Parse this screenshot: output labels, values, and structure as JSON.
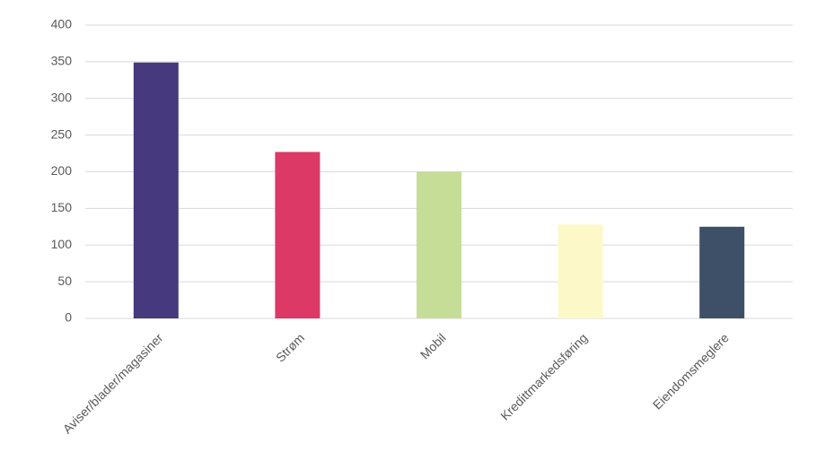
{
  "chart_data": {
    "type": "bar",
    "categories": [
      "Aviser/blader/magasiner",
      "Strøm",
      "Mobil",
      "Kredittmarkedsføring",
      "Eiendomsmeglere"
    ],
    "values": [
      349,
      227,
      200,
      128,
      125
    ],
    "colors": [
      "#46397d",
      "#dc3966",
      "#c5dd97",
      "#fdf8c8",
      "#3e5068"
    ],
    "ylim": [
      0,
      400
    ],
    "yticks": [
      0,
      50,
      100,
      150,
      200,
      250,
      300,
      350,
      400
    ],
    "grid": true
  }
}
